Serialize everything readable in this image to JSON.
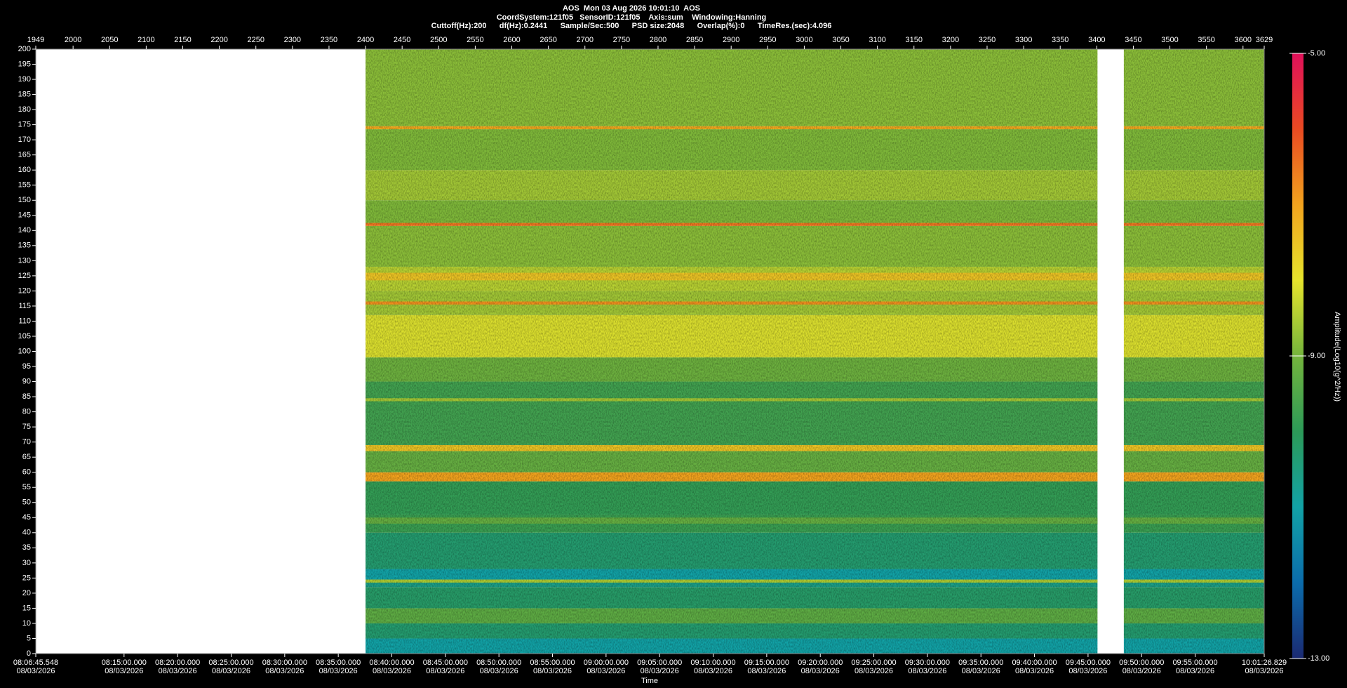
{
  "chart_data": {
    "type": "spectrogram",
    "header_lines": [
      "AOS  Mon 03 Aug 2026 10:01:10  AOS",
      "CoordSystem:121f05   SensorID:121f05    Axis:sum    Windowing:Hanning",
      "Cuttoff(Hz):200      df(Hz):0.2441      Sample/Sec:500      PSD size:2048      Overlap(%):0      TimeRes.(sec):4.096"
    ],
    "x_label": "Time",
    "colorbar_label": "Amplitude(Log10(g^2/Hz))",
    "xlim": [
      1949,
      3629
    ],
    "xticks": [
      1949,
      2000,
      2050,
      2100,
      2150,
      2200,
      2250,
      2300,
      2350,
      2400,
      2450,
      2500,
      2550,
      2600,
      2650,
      2700,
      2750,
      2800,
      2850,
      2900,
      2950,
      3000,
      3050,
      3100,
      3150,
      3200,
      3250,
      3300,
      3350,
      3400,
      3450,
      3500,
      3550,
      3600,
      3629
    ],
    "x2lim": [
      29205.548,
      36086.829
    ],
    "x2ticks": [
      {
        "value": 29205.548,
        "label": "08:06:45.548",
        "date": "08/03/2026"
      },
      {
        "value": 29700,
        "label": "08:15:00.000",
        "date": "08/03/2026"
      },
      {
        "value": 30000,
        "label": "08:20:00.000",
        "date": "08/03/2026"
      },
      {
        "value": 30300,
        "label": "08:25:00.000",
        "date": "08/03/2026"
      },
      {
        "value": 30600,
        "label": "08:30:00.000",
        "date": "08/03/2026"
      },
      {
        "value": 30900,
        "label": "08:35:00.000",
        "date": "08/03/2026"
      },
      {
        "value": 31200,
        "label": "08:40:00.000",
        "date": "08/03/2026"
      },
      {
        "value": 31500,
        "label": "08:45:00.000",
        "date": "08/03/2026"
      },
      {
        "value": 31800,
        "label": "08:50:00.000",
        "date": "08/03/2026"
      },
      {
        "value": 32100,
        "label": "08:55:00.000",
        "date": "08/03/2026"
      },
      {
        "value": 32400,
        "label": "09:00:00.000",
        "date": "08/03/2026"
      },
      {
        "value": 32700,
        "label": "09:05:00.000",
        "date": "08/03/2026"
      },
      {
        "value": 33000,
        "label": "09:10:00.000",
        "date": "08/03/2026"
      },
      {
        "value": 33300,
        "label": "09:15:00.000",
        "date": "08/03/2026"
      },
      {
        "value": 33600,
        "label": "09:20:00.000",
        "date": "08/03/2026"
      },
      {
        "value": 33900,
        "label": "09:25:00.000",
        "date": "08/03/2026"
      },
      {
        "value": 34200,
        "label": "09:30:00.000",
        "date": "08/03/2026"
      },
      {
        "value": 34500,
        "label": "09:35:00.000",
        "date": "08/03/2026"
      },
      {
        "value": 34800,
        "label": "09:40:00.000",
        "date": "08/03/2026"
      },
      {
        "value": 35100,
        "label": "09:45:00.000",
        "date": "08/03/2026"
      },
      {
        "value": 35400,
        "label": "09:50:00.000",
        "date": "08/03/2026"
      },
      {
        "value": 35700,
        "label": "09:55:00.000",
        "date": "08/03/2026"
      },
      {
        "value": 36086.829,
        "label": "10:01:26.829",
        "date": "08/03/2026"
      }
    ],
    "ylim": [
      0,
      200
    ],
    "yticks": [
      0,
      5,
      10,
      15,
      20,
      25,
      30,
      35,
      40,
      45,
      50,
      55,
      60,
      65,
      70,
      75,
      80,
      85,
      90,
      95,
      100,
      105,
      110,
      115,
      120,
      125,
      130,
      135,
      140,
      145,
      150,
      155,
      160,
      165,
      170,
      175,
      180,
      185,
      190,
      195,
      200
    ],
    "clim": [
      -13,
      -5
    ],
    "cticks": [
      {
        "value": -5,
        "label": "-5.00"
      },
      {
        "value": -9,
        "label": "-9.00"
      },
      {
        "value": -13,
        "label": "-13.00"
      }
    ],
    "colorscale": [
      {
        "value": -13,
        "color": "#1b2a72"
      },
      {
        "value": -12,
        "color": "#0b6cab"
      },
      {
        "value": -11,
        "color": "#12a2a6"
      },
      {
        "value": -10,
        "color": "#2c9a58"
      },
      {
        "value": -9,
        "color": "#74b43c"
      },
      {
        "value": -8,
        "color": "#e6e42c"
      },
      {
        "value": -7,
        "color": "#f2a31e"
      },
      {
        "value": -6,
        "color": "#ea4a22"
      },
      {
        "value": -5,
        "color": "#e0105a"
      }
    ],
    "segments": [
      {
        "start": 2400,
        "end": 3401
      },
      {
        "start": 3437,
        "end": 3629
      }
    ],
    "bands": [
      {
        "from": 0,
        "to": 5,
        "value": -11
      },
      {
        "from": 5,
        "to": 10,
        "value": -10.3
      },
      {
        "from": 10,
        "to": 15,
        "value": -9.3
      },
      {
        "from": 15,
        "to": 22,
        "value": -10.2
      },
      {
        "from": 22,
        "to": 24,
        "value": -10.6
      },
      {
        "from": 23.5,
        "to": 24.5,
        "value": -8.5
      },
      {
        "from": 24.5,
        "to": 28,
        "value": -11
      },
      {
        "from": 28,
        "to": 40,
        "value": -10.3
      },
      {
        "from": 40,
        "to": 46,
        "value": -9.8
      },
      {
        "from": 43,
        "to": 45,
        "value": -9.2
      },
      {
        "from": 46,
        "to": 57,
        "value": -9.9
      },
      {
        "from": 57,
        "to": 60,
        "value": -7
      },
      {
        "from": 60,
        "to": 67,
        "value": -9.2
      },
      {
        "from": 67,
        "to": 69,
        "value": -7.5
      },
      {
        "from": 69,
        "to": 90,
        "value": -9.7
      },
      {
        "from": 83.5,
        "to": 84.5,
        "value": -8.6
      },
      {
        "from": 90,
        "to": 98,
        "value": -9.1
      },
      {
        "from": 98,
        "to": 112,
        "value": -8.1
      },
      {
        "from": 112,
        "to": 120,
        "value": -8.6
      },
      {
        "from": 115.5,
        "to": 116.5,
        "value": -6.8
      },
      {
        "from": 120,
        "to": 128,
        "value": -8.4
      },
      {
        "from": 123.5,
        "to": 126,
        "value": -7.5
      },
      {
        "from": 128,
        "to": 141.5,
        "value": -8.8
      },
      {
        "from": 141.5,
        "to": 142.5,
        "value": -6.5
      },
      {
        "from": 142.5,
        "to": 150,
        "value": -8.9
      },
      {
        "from": 150,
        "to": 160,
        "value": -8.6
      },
      {
        "from": 160,
        "to": 173.5,
        "value": -8.9
      },
      {
        "from": 173.5,
        "to": 174.5,
        "value": -7.1
      },
      {
        "from": 174.5,
        "to": 200,
        "value": -8.8
      }
    ]
  }
}
